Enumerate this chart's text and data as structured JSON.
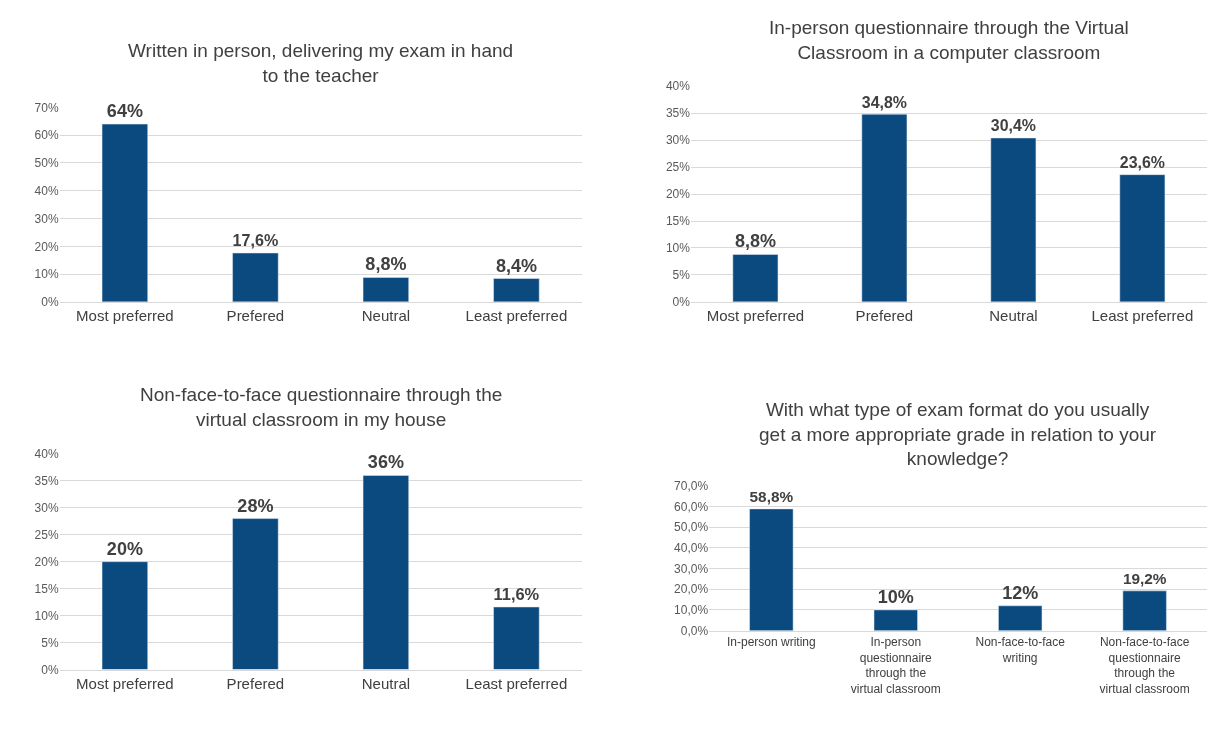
{
  "chart_data": [
    {
      "type": "bar",
      "title": "Written in person, delivering my exam in hand\nto the teacher",
      "categories": [
        "Most preferred",
        "Prefered",
        "Neutral",
        "Least preferred"
      ],
      "values": [
        64,
        17.6,
        8.8,
        8.4
      ],
      "value_labels": [
        "64%",
        "17,6%",
        "8,8%",
        "8,4%"
      ],
      "color": "#0b4a7e",
      "ylim": [
        0,
        70
      ],
      "yticks": [
        {
          "value": 0,
          "label": "0%"
        },
        {
          "value": 10,
          "label": "10%"
        },
        {
          "value": 20,
          "label": "20%"
        },
        {
          "value": 30,
          "label": "30%"
        },
        {
          "value": 40,
          "label": "40%"
        },
        {
          "value": 50,
          "label": "50%"
        },
        {
          "value": 60,
          "label": "60%"
        },
        {
          "value": 70,
          "label": "70%"
        }
      ],
      "grid": "y",
      "legend": false
    },
    {
      "type": "bar",
      "title": "In-person questionnaire through the Virtual\nClassroom in a computer classroom",
      "categories": [
        "Most preferred",
        "Prefered",
        "Neutral",
        "Least preferred"
      ],
      "values": [
        8.8,
        34.8,
        30.4,
        23.6
      ],
      "value_labels": [
        "8,8%",
        "34,8%",
        "30,4%",
        "23,6%"
      ],
      "color": "#0b4a7e",
      "ylim": [
        0,
        40
      ],
      "yticks": [
        {
          "value": 0,
          "label": "0%"
        },
        {
          "value": 5,
          "label": "5%"
        },
        {
          "value": 10,
          "label": "10%"
        },
        {
          "value": 15,
          "label": "15%"
        },
        {
          "value": 20,
          "label": "20%"
        },
        {
          "value": 25,
          "label": "25%"
        },
        {
          "value": 30,
          "label": "30%"
        },
        {
          "value": 35,
          "label": "35%"
        },
        {
          "value": 40,
          "label": "40%"
        }
      ],
      "grid": "y",
      "legend": false
    },
    {
      "type": "bar",
      "title": "Non-face-to-face questionnaire through the\nvirtual classroom in my house",
      "categories": [
        "Most preferred",
        "Prefered",
        "Neutral",
        "Least preferred"
      ],
      "values": [
        20,
        28,
        36,
        11.6
      ],
      "value_labels": [
        "20%",
        "28%",
        "36%",
        "11,6%"
      ],
      "color": "#0b4a7e",
      "ylim": [
        0,
        40
      ],
      "yticks": [
        {
          "value": 0,
          "label": "0%"
        },
        {
          "value": 5,
          "label": "5%"
        },
        {
          "value": 10,
          "label": "10%"
        },
        {
          "value": 15,
          "label": "15%"
        },
        {
          "value": 20,
          "label": "20%"
        },
        {
          "value": 25,
          "label": "25%"
        },
        {
          "value": 30,
          "label": "30%"
        },
        {
          "value": 35,
          "label": "35%"
        },
        {
          "value": 40,
          "label": "40%"
        }
      ],
      "grid": "y",
      "legend": false
    },
    {
      "type": "bar",
      "title": "With what type of exam format do you usually\nget a more appropriate grade in relation to your\nknowledge?",
      "categories": [
        "In-person writing",
        "In-person\nquestionnaire\nthrough the\nvirtual classroom",
        "Non-face-to-face\nwriting",
        "Non-face-to-face\nquestionnaire\nthrough the\nvirtual classroom"
      ],
      "values": [
        58.8,
        10,
        12,
        19.2
      ],
      "value_labels": [
        "58,8%",
        "10%",
        "12%",
        "19,2%"
      ],
      "color": "#0b4a7e",
      "ylim": [
        0,
        70
      ],
      "yticks": [
        {
          "value": 0,
          "label": "0,0%"
        },
        {
          "value": 10,
          "label": "10,0%"
        },
        {
          "value": 20,
          "label": "20,0%"
        },
        {
          "value": 30,
          "label": "30,0%"
        },
        {
          "value": 40,
          "label": "40,0%"
        },
        {
          "value": 50,
          "label": "50,0%"
        },
        {
          "value": 60,
          "label": "60,0%"
        },
        {
          "value": 70,
          "label": "70,0%"
        }
      ],
      "grid": "y",
      "legend": false
    }
  ]
}
